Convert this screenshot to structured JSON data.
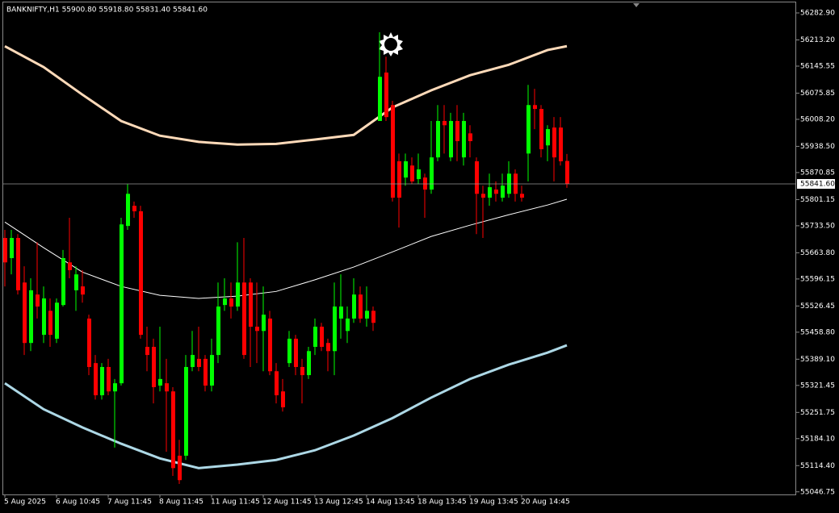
{
  "chart_data": {
    "type": "candlestick",
    "title": "BANKNIFTY,H1  55900.80 55918.80 55831.40 55841.60",
    "categories": [
      "5 Aug 2025",
      null,
      null,
      null,
      null,
      null,
      null,
      null,
      "6 Aug 10:45",
      null,
      null,
      null,
      null,
      null,
      null,
      null,
      "7 Aug 11:45",
      null,
      null,
      null,
      null,
      null,
      null,
      null,
      "8 Aug 11:45",
      null,
      null,
      null,
      null,
      null,
      null,
      null,
      "11 Aug 11:45",
      null,
      null,
      null,
      null,
      null,
      null,
      null,
      "12 Aug 11:45",
      null,
      null,
      null,
      null,
      null,
      null,
      null,
      "13 Aug 12:45",
      null,
      null,
      null,
      null,
      null,
      null,
      null,
      "14 Aug 13:45",
      null,
      null,
      null,
      null,
      null,
      null,
      null,
      "18 Aug 13:45",
      null,
      null,
      null,
      null,
      null,
      null,
      null,
      "19 Aug 13:45",
      null,
      null,
      null,
      null,
      null,
      null,
      null,
      "20 Aug 14:45",
      null,
      null,
      null,
      null,
      null,
      null,
      null
    ],
    "open": [
      55702,
      55650,
      55702,
      55587,
      55431,
      55556,
      55452,
      55514,
      55442,
      55529,
      55639,
      55567,
      55577,
      55494,
      55379,
      55296,
      55369,
      55306,
      55327,
      55733,
      55785,
      55771,
      55421,
      55421,
      55321,
      55327,
      55306,
      55140,
      55140,
      55369,
      55390,
      55390,
      55321,
      55400,
      55529,
      55546,
      55525,
      55587,
      55587,
      55473,
      55462,
      55494,
      55358,
      55306,
      55379,
      55442,
      55369,
      55348,
      55421,
      55473,
      55431,
      55410,
      55494,
      55462,
      55494,
      55556,
      55494,
      55514,
      56004,
      56129,
      56045,
      55900,
      55858,
      55889,
      55854,
      55858,
      55827,
      55910,
      56004,
      55910,
      56004,
      55910,
      55972,
      55900,
      55816,
      55806,
      55827,
      55806,
      55816,
      55868,
      55816,
      55920,
      56045,
      56035,
      55941,
      55987,
      55987,
      55900.8
    ],
    "high": [
      55723,
      55723,
      55712,
      55629,
      55598,
      55691,
      55577,
      55546,
      55546,
      55671,
      55754,
      55629,
      55619,
      55504,
      55400,
      55379,
      55390,
      55338,
      55754,
      55841,
      55796,
      55785,
      55473,
      55442,
      55473,
      55390,
      55317,
      55181,
      55400,
      55462,
      55473,
      55400,
      55442,
      55587,
      55598,
      55587,
      55691,
      55702,
      55598,
      55587,
      55577,
      55514,
      55379,
      55338,
      55462,
      55452,
      55390,
      55421,
      55494,
      55483,
      55442,
      55587,
      55608,
      55525,
      55598,
      55577,
      55577,
      55525,
      56233,
      56170,
      56056,
      55920,
      55920,
      55910,
      55920,
      55868,
      56004,
      56045,
      56045,
      56025,
      56045,
      56025,
      55993,
      55910,
      55837,
      55868,
      55848,
      55868,
      55900,
      55879,
      55837,
      56097,
      56087,
      56045,
      55993,
      56014,
      56014,
      55918.8
    ],
    "low": [
      55577,
      55608,
      55556,
      55400,
      55410,
      55494,
      55431,
      55421,
      55431,
      55525,
      55598,
      55514,
      55535,
      55348,
      55285,
      55285,
      55296,
      55161,
      55321,
      55723,
      55754,
      55442,
      55358,
      55275,
      55306,
      55150,
      55088,
      55067,
      55129,
      55358,
      55358,
      55306,
      55306,
      55379,
      55514,
      55494,
      55514,
      55390,
      55369,
      55379,
      55358,
      55348,
      55275,
      55254,
      55369,
      55348,
      55275,
      55338,
      55400,
      55410,
      55358,
      55348,
      55442,
      55431,
      55483,
      55483,
      55473,
      55462,
      56004,
      56004,
      55796,
      55729,
      55837,
      55841,
      55841,
      55754,
      55816,
      55900,
      55920,
      55900,
      55900,
      55889,
      55910,
      55712,
      55702,
      55785,
      55796,
      55796,
      55806,
      55796,
      55796,
      55848,
      55983,
      55910,
      55900,
      55848,
      55889,
      55831.4
    ],
    "close": [
      55639,
      55702,
      55567,
      55431,
      55567,
      55525,
      55546,
      55452,
      55535,
      55650,
      55619,
      55608,
      55556,
      55369,
      55296,
      55369,
      55306,
      55327,
      55737,
      55816,
      55771,
      55452,
      55400,
      55317,
      55338,
      55306,
      55108,
      55077,
      55369,
      55400,
      55369,
      55321,
      55400,
      55525,
      55546,
      55525,
      55587,
      55400,
      55473,
      55462,
      55504,
      55358,
      55296,
      55265,
      55442,
      55369,
      55348,
      55410,
      55473,
      55421,
      55410,
      55525,
      55525,
      55494,
      55556,
      55494,
      55514,
      55483,
      56118,
      56014,
      55806,
      55806,
      55900,
      55848,
      55879,
      55827,
      55910,
      56004,
      55993,
      56004,
      55952,
      56004,
      55952,
      55816,
      55806,
      55833,
      55816,
      55837,
      55868,
      55816,
      55806,
      56045,
      56035,
      55931,
      55983,
      55910,
      55900,
      55841.6
    ],
    "up_color": "#00ff00",
    "down_color": "#ff0000",
    "lines": [
      {
        "color": "#ffdab9",
        "x": [
          0,
          6,
          12,
          18,
          24,
          30,
          36,
          42,
          48,
          54,
          60,
          66,
          72,
          78,
          84,
          87
        ],
        "values": [
          56197,
          56143,
          56072,
          56004,
          55966,
          55950,
          55943,
          55945,
          55956,
          55968,
          56039,
          56083,
          56122,
          56149,
          56187,
          56197
        ]
      },
      {
        "color": "#ffffff",
        "x": [
          0,
          6,
          12,
          18,
          24,
          30,
          36,
          42,
          48,
          54,
          60,
          66,
          72,
          78,
          84,
          87
        ],
        "values": [
          55743,
          55677,
          55614,
          55577,
          55554,
          55546,
          55552,
          55564,
          55594,
          55627,
          55666,
          55706,
          55735,
          55762,
          55787,
          55802
        ]
      },
      {
        "color": "#add8e6",
        "x": [
          0,
          6,
          12,
          18,
          24,
          30,
          36,
          42,
          48,
          54,
          60,
          66,
          72,
          78,
          84,
          87
        ],
        "values": [
          55327,
          55260,
          55213,
          55171,
          55133,
          55108,
          55117,
          55129,
          55154,
          55192,
          55237,
          55290,
          55338,
          55375,
          55406,
          55425
        ]
      }
    ],
    "price_line": {
      "value": 55841.6,
      "label": "55841.60"
    },
    "ylim": [
      55040,
      56310
    ],
    "yticks": [
      {
        "value": 56282.9,
        "label": "56282.90"
      },
      {
        "value": 56213.2,
        "label": "56213.20"
      },
      56145.55,
      56075.85,
      {
        "value": 56008.2,
        "label": "56008.20"
      },
      {
        "value": 55938.5,
        "label": "55938.50"
      },
      55870.85,
      55801.15,
      {
        "value": 55733.5,
        "label": "55733.50"
      },
      {
        "value": 55663.8,
        "label": "55663.80"
      },
      55596.15,
      55526.45,
      {
        "value": 55458.8,
        "label": "55458.80"
      },
      {
        "value": 55389.1,
        "label": "55389.10"
      },
      55321.45,
      55251.75,
      {
        "value": 55184.1,
        "label": "55184.10"
      },
      {
        "value": 55114.4,
        "label": "55114.40"
      },
      55046.75
    ]
  }
}
